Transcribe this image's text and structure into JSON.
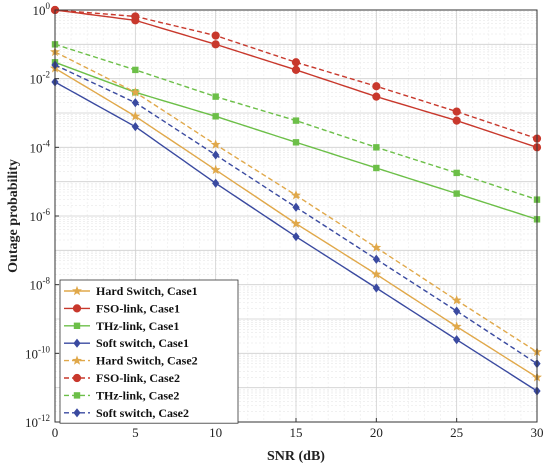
{
  "chart_data": {
    "type": "line",
    "xlabel": "SNR (dB)",
    "ylabel": "Outage probability",
    "xlim": [
      0,
      30
    ],
    "ylim_log10": [
      -12,
      0
    ],
    "y_scale": "log",
    "x_ticks": [
      "0",
      "5",
      "10",
      "15",
      "20",
      "25",
      "30"
    ],
    "y_ticks": [
      {
        "base": "10",
        "exp": "0"
      },
      {
        "base": "10",
        "exp": "-2"
      },
      {
        "base": "10",
        "exp": "-4"
      },
      {
        "base": "10",
        "exp": "-6"
      },
      {
        "base": "10",
        "exp": "-8"
      },
      {
        "base": "10",
        "exp": "-10"
      },
      {
        "base": "10",
        "exp": "-12"
      }
    ],
    "grid": true,
    "legend_position": "bottom-left",
    "series": [
      {
        "name": "Hard Switch, Case1",
        "color": "#e0a84a",
        "marker": "star",
        "dash": "solid",
        "x": [
          0,
          5,
          10,
          15,
          20,
          25,
          30
        ],
        "y": [
          0.02,
          0.0008,
          2.2e-05,
          6e-07,
          2e-08,
          6e-10,
          2e-11
        ]
      },
      {
        "name": "FSO-link, Case1",
        "color": "#c8382c",
        "marker": "circle",
        "dash": "solid",
        "x": [
          0,
          5,
          10,
          15,
          20,
          25,
          30
        ],
        "y": [
          1,
          0.5,
          0.1,
          0.018,
          0.003,
          0.0006,
          0.0001
        ]
      },
      {
        "name": "THz-link, Case1",
        "color": "#6cbf48",
        "marker": "square",
        "dash": "solid",
        "x": [
          0,
          5,
          10,
          15,
          20,
          25,
          30
        ],
        "y": [
          0.03,
          0.004,
          0.0008,
          0.00014,
          2.5e-05,
          4.5e-06,
          8e-07
        ]
      },
      {
        "name": "Soft switch, Case1",
        "color": "#3a4aa0",
        "marker": "diamond",
        "dash": "solid",
        "x": [
          0,
          5,
          10,
          15,
          20,
          25,
          30
        ],
        "y": [
          0.008,
          0.0004,
          9e-06,
          2.5e-07,
          8e-09,
          2.5e-10,
          8e-12
        ]
      },
      {
        "name": "Hard Switch, Case2",
        "color": "#e0a84a",
        "marker": "star",
        "dash": "dashed",
        "x": [
          0,
          5,
          10,
          15,
          20,
          25,
          30
        ],
        "y": [
          0.06,
          0.004,
          0.00012,
          4e-06,
          1.2e-07,
          3.5e-09,
          1.1e-10
        ]
      },
      {
        "name": "FSO-link, Case2",
        "color": "#c8382c",
        "marker": "circle",
        "dash": "dashed",
        "x": [
          0,
          5,
          10,
          15,
          20,
          25,
          30
        ],
        "y": [
          1,
          0.65,
          0.18,
          0.03,
          0.006,
          0.0011,
          0.00018
        ]
      },
      {
        "name": "THz-link, Case2",
        "color": "#6cbf48",
        "marker": "square",
        "dash": "dashed",
        "x": [
          0,
          5,
          10,
          15,
          20,
          25,
          30
        ],
        "y": [
          0.1,
          0.018,
          0.003,
          0.0006,
          0.0001,
          1.8e-05,
          3e-06
        ]
      },
      {
        "name": "Soft switch, Case2",
        "color": "#3a4aa0",
        "marker": "diamond",
        "dash": "dashed",
        "x": [
          0,
          5,
          10,
          15,
          20,
          25,
          30
        ],
        "y": [
          0.025,
          0.002,
          6e-05,
          1.8e-06,
          5.5e-08,
          1.7e-09,
          5e-11
        ]
      }
    ]
  }
}
